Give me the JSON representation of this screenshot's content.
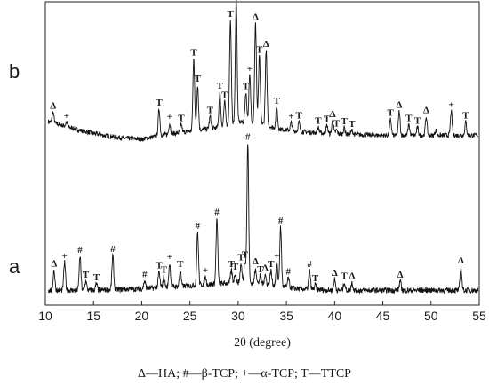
{
  "chart_data": {
    "type": "line",
    "xlabel": "2θ (degree)",
    "xlim": [
      10,
      55
    ],
    "xticks": [
      "10",
      "15",
      "20",
      "25",
      "30",
      "35",
      "40",
      "45",
      "50",
      "55"
    ],
    "caption": "Δ—HA; #—β-TCP; +—α-TCP; T—TTCP",
    "series": [
      {
        "name": "b",
        "baseline": [
          [
            10,
            0.16
          ],
          [
            12,
            0.12
          ],
          [
            14,
            0.08
          ],
          [
            16,
            0.05
          ],
          [
            18,
            0.03
          ],
          [
            20,
            0.02
          ],
          [
            22,
            0.05
          ],
          [
            24,
            0.07
          ],
          [
            26,
            0.09
          ],
          [
            28,
            0.11
          ],
          [
            30,
            0.15
          ],
          [
            32,
            0.15
          ],
          [
            34,
            0.1
          ],
          [
            36,
            0.08
          ],
          [
            40,
            0.06
          ],
          [
            45,
            0.05
          ],
          [
            50,
            0.05
          ],
          [
            55,
            0.05
          ]
        ],
        "peaks": [
          {
            "x": 10.8,
            "h": 0.08,
            "mark": "Δ"
          },
          {
            "x": 12.2,
            "h": 0.03,
            "mark": "+"
          },
          {
            "x": 21.8,
            "h": 0.2,
            "mark": "T"
          },
          {
            "x": 22.9,
            "h": 0.08,
            "mark": "+"
          },
          {
            "x": 24.1,
            "h": 0.06,
            "mark": "T"
          },
          {
            "x": 25.4,
            "h": 0.54,
            "mark": "T"
          },
          {
            "x": 25.8,
            "h": 0.34,
            "mark": "T"
          },
          {
            "x": 27.1,
            "h": 0.09,
            "mark": "T"
          },
          {
            "x": 28.1,
            "h": 0.26,
            "mark": "T"
          },
          {
            "x": 28.6,
            "h": 0.18,
            "mark": "T"
          },
          {
            "x": 29.2,
            "h": 0.78,
            "mark": "T"
          },
          {
            "x": 29.8,
            "h": 0.95,
            "mark": "T"
          },
          {
            "x": 30.8,
            "h": 0.22,
            "mark": "T"
          },
          {
            "x": 31.2,
            "h": 0.35,
            "mark": "+"
          },
          {
            "x": 31.8,
            "h": 0.74,
            "mark": "Δ"
          },
          {
            "x": 32.2,
            "h": 0.5,
            "mark": "T"
          },
          {
            "x": 32.9,
            "h": 0.56,
            "mark": "Δ"
          },
          {
            "x": 34.0,
            "h": 0.16,
            "mark": "T"
          },
          {
            "x": 35.5,
            "h": 0.06,
            "mark": "+"
          },
          {
            "x": 36.3,
            "h": 0.07,
            "mark": "T"
          },
          {
            "x": 38.3,
            "h": 0.04,
            "mark": "T"
          },
          {
            "x": 39.2,
            "h": 0.06,
            "mark": "T"
          },
          {
            "x": 39.8,
            "h": 0.1,
            "mark": "Δ"
          },
          {
            "x": 40.2,
            "h": 0.03,
            "mark": "T"
          },
          {
            "x": 41.0,
            "h": 0.05,
            "mark": "T"
          },
          {
            "x": 41.8,
            "h": 0.03,
            "mark": "T"
          },
          {
            "x": 45.8,
            "h": 0.12,
            "mark": "T"
          },
          {
            "x": 46.7,
            "h": 0.18,
            "mark": "Δ"
          },
          {
            "x": 47.7,
            "h": 0.08,
            "mark": "T"
          },
          {
            "x": 48.6,
            "h": 0.06,
            "mark": "T"
          },
          {
            "x": 49.5,
            "h": 0.14,
            "mark": "Δ"
          },
          {
            "x": 50.5,
            "h": 0.04,
            "mark": ""
          },
          {
            "x": 52.1,
            "h": 0.18,
            "mark": "+"
          },
          {
            "x": 53.6,
            "h": 0.1,
            "mark": "T"
          }
        ]
      },
      {
        "name": "a",
        "baseline": [
          [
            10,
            0.05
          ],
          [
            15,
            0.05
          ],
          [
            20,
            0.06
          ],
          [
            25,
            0.08
          ],
          [
            30,
            0.1
          ],
          [
            33,
            0.09
          ],
          [
            36,
            0.06
          ],
          [
            40,
            0.05
          ],
          [
            45,
            0.05
          ],
          [
            50,
            0.05
          ],
          [
            55,
            0.05
          ]
        ],
        "peaks": [
          {
            "x": 10.9,
            "h": 0.13,
            "mark": "Δ"
          },
          {
            "x": 12.0,
            "h": 0.18,
            "mark": "+"
          },
          {
            "x": 13.6,
            "h": 0.22,
            "mark": "#"
          },
          {
            "x": 14.2,
            "h": 0.06,
            "mark": "T"
          },
          {
            "x": 15.3,
            "h": 0.04,
            "mark": "T"
          },
          {
            "x": 17.0,
            "h": 0.22,
            "mark": "#"
          },
          {
            "x": 20.3,
            "h": 0.05,
            "mark": "#"
          },
          {
            "x": 21.8,
            "h": 0.1,
            "mark": "T"
          },
          {
            "x": 22.3,
            "h": 0.07,
            "mark": "T"
          },
          {
            "x": 22.9,
            "h": 0.15,
            "mark": "+"
          },
          {
            "x": 24.0,
            "h": 0.1,
            "mark": "T"
          },
          {
            "x": 25.8,
            "h": 0.34,
            "mark": "#"
          },
          {
            "x": 26.6,
            "h": 0.05,
            "mark": "+"
          },
          {
            "x": 27.8,
            "h": 0.42,
            "mark": "#"
          },
          {
            "x": 29.3,
            "h": 0.08,
            "mark": "T"
          },
          {
            "x": 29.7,
            "h": 0.06,
            "mark": "T"
          },
          {
            "x": 30.3,
            "h": 0.12,
            "mark": "T"
          },
          {
            "x": 30.7,
            "h": 0.14,
            "mark": "T"
          },
          {
            "x": 31.0,
            "h": 0.9,
            "mark": "#"
          },
          {
            "x": 31.8,
            "h": 0.1,
            "mark": "Δ"
          },
          {
            "x": 32.3,
            "h": 0.05,
            "mark": "T"
          },
          {
            "x": 32.8,
            "h": 0.06,
            "mark": "Δ"
          },
          {
            "x": 33.4,
            "h": 0.09,
            "mark": "T"
          },
          {
            "x": 34.0,
            "h": 0.15,
            "mark": "+"
          },
          {
            "x": 34.4,
            "h": 0.38,
            "mark": "#"
          },
          {
            "x": 35.2,
            "h": 0.06,
            "mark": "#"
          },
          {
            "x": 37.4,
            "h": 0.12,
            "mark": "#"
          },
          {
            "x": 38.0,
            "h": 0.03,
            "mark": "T"
          },
          {
            "x": 40.0,
            "h": 0.07,
            "mark": "Δ"
          },
          {
            "x": 41.0,
            "h": 0.05,
            "mark": "T"
          },
          {
            "x": 41.8,
            "h": 0.05,
            "mark": "Δ"
          },
          {
            "x": 46.8,
            "h": 0.06,
            "mark": "Δ"
          },
          {
            "x": 53.1,
            "h": 0.15,
            "mark": "Δ"
          }
        ]
      }
    ]
  }
}
